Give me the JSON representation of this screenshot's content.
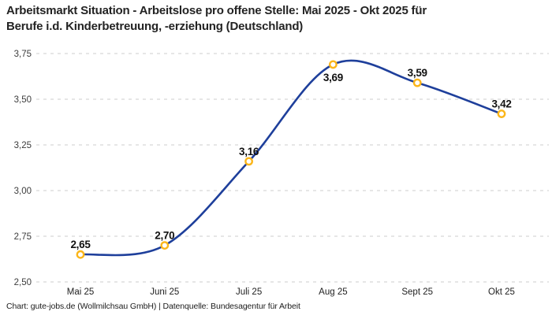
{
  "header": {
    "title_line1": "Arbeitsmarkt Situation - Arbeitslose pro offene Stelle: Mai 2025 - Okt 2025 für",
    "title_line2": "Berufe i.d. Kinderbetreuung, -erziehung (Deutschland)"
  },
  "chart_data": {
    "type": "line",
    "title": "Arbeitsmarkt Situation - Arbeitslose pro offene Stelle: Mai 2025 - Okt 2025 für Berufe i.d. Kinderbetreuung, -erziehung (Deutschland)",
    "categories": [
      "Mai 25",
      "Juni 25",
      "Juli 25",
      "Aug 25",
      "Sept 25",
      "Okt 25"
    ],
    "values": [
      2.65,
      2.7,
      3.16,
      3.69,
      3.59,
      3.42
    ],
    "value_labels": [
      "2,65",
      "2,70",
      "3,16",
      "3,69",
      "3,59",
      "3,42"
    ],
    "label_positions": [
      "above",
      "above",
      "above",
      "below",
      "above",
      "above"
    ],
    "y_tick_values": [
      3.75,
      3.5,
      3.25,
      3.0,
      2.75,
      2.5
    ],
    "y_tick_labels": [
      "3,75",
      "3,50",
      "3,25",
      "3,00",
      "2,75",
      "2,50"
    ],
    "ylim": [
      2.5,
      3.75
    ],
    "xlabel": "",
    "ylabel": "",
    "grid": "horizontal-dashed",
    "legend": "none",
    "colors": {
      "line": "#1e3f9b",
      "marker_ring": "#fbb61a",
      "marker_fill": "#ffffff",
      "grid": "#cccccc",
      "tick_label": "#3d3d3d",
      "x_label": "#222222",
      "data_label": "#111111"
    }
  },
  "footer": {
    "text": "Chart: gute-jobs.de (Wollmilchsau GmbH) | Datenquelle: Bundesagentur für Arbeit"
  }
}
